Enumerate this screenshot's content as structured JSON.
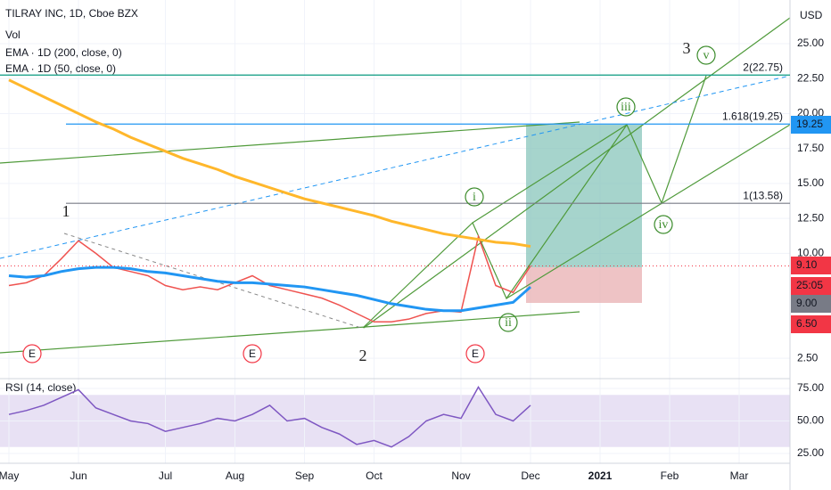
{
  "chart_data": [
    {
      "type": "line",
      "title": "TILRAY INC, 1D, Cboe BZX",
      "legend": [
        "Vol",
        "EMA · 1D (200, close, 0)",
        "EMA · 1D (50, close, 0)"
      ],
      "currency": "USD",
      "categories": [
        "May",
        null,
        null,
        null,
        "Jun",
        null,
        null,
        null,
        null,
        "Jul",
        null,
        null,
        null,
        "Aug",
        null,
        null,
        null,
        "Sep",
        null,
        null,
        null,
        "Oct",
        null,
        null,
        null,
        null,
        "Nov",
        null,
        null,
        null,
        "Dec",
        null,
        null,
        null,
        "2021",
        null,
        null,
        null,
        "Feb",
        null,
        null,
        null,
        "Mar",
        null,
        null
      ],
      "series": [
        {
          "color": "#ef5350",
          "values": [
            7.7,
            7.9,
            8.4,
            9.6,
            10.9,
            10.0,
            9.0,
            8.7,
            8.4,
            7.7,
            7.4,
            7.6,
            7.4,
            7.9,
            8.4,
            7.7,
            7.4,
            7.1,
            6.8,
            6.3,
            5.7,
            5.1,
            5.1,
            5.3,
            5.7,
            5.9,
            5.8,
            11.2,
            7.7,
            7.2,
            9.1,
            null,
            null,
            null,
            null,
            null,
            null,
            null,
            null,
            null,
            null,
            null,
            null,
            null,
            null
          ]
        },
        {
          "name": "EMA · 1D (200, close, 0)",
          "color": "#ffb72b",
          "values": [
            22.4,
            21.8,
            21.2,
            20.6,
            20.0,
            19.4,
            18.9,
            18.3,
            17.8,
            17.3,
            16.8,
            16.4,
            16.0,
            15.5,
            15.1,
            14.7,
            14.3,
            13.9,
            13.6,
            13.3,
            13.0,
            12.7,
            12.3,
            12.0,
            11.7,
            11.4,
            11.2,
            11.0,
            10.8,
            10.7,
            10.5,
            null,
            null,
            null,
            null,
            null,
            null,
            null,
            null,
            null,
            null,
            null,
            null,
            null,
            null
          ]
        },
        {
          "name": "EMA · 1D (50, close, 0)",
          "color": "#2196f3",
          "values": [
            8.4,
            8.3,
            8.4,
            8.7,
            8.9,
            9.0,
            9.0,
            8.9,
            8.7,
            8.6,
            8.4,
            8.2,
            8.0,
            7.9,
            7.9,
            7.8,
            7.7,
            7.6,
            7.4,
            7.2,
            7.0,
            6.7,
            6.4,
            6.2,
            6.0,
            5.9,
            5.9,
            6.1,
            6.3,
            6.5,
            7.6,
            null,
            null,
            null,
            null,
            null,
            null,
            null,
            null,
            null,
            null,
            null,
            null,
            null,
            null
          ]
        }
      ],
      "ylim": [
        1.36,
        28.12
      ],
      "yticks": [
        {
          "value": 2.5,
          "label": "2.50"
        },
        {
          "value": 10,
          "label": "10.00"
        },
        {
          "value": 12.5,
          "label": "12.50"
        },
        {
          "value": 15,
          "label": "15.00"
        },
        {
          "value": 17.5,
          "label": "17.50"
        },
        {
          "value": 20,
          "label": "20.00"
        },
        {
          "value": 22.5,
          "label": "22.50"
        },
        {
          "value": 25,
          "label": "25.00"
        }
      ],
      "levels": [
        {
          "label": "2(22.75)",
          "value": 22.75,
          "color": "#089981"
        },
        {
          "label": "1.618(19.25)",
          "value": 19.25,
          "color": "#2196f3"
        },
        {
          "label": "1(13.58)",
          "value": 13.58,
          "color": "#787b86"
        }
      ],
      "price_labels": [
        {
          "label": "19.25",
          "color": "#2196f3"
        },
        {
          "label": "9.10",
          "color": "#f23645"
        },
        {
          "label": "25:05",
          "color": "#f23645"
        },
        {
          "label": "9.00",
          "color": "#787b86"
        },
        {
          "label": "6.50",
          "color": "#f23645"
        }
      ],
      "waves": [
        "1",
        "2",
        "3",
        "i",
        "ii",
        "iii",
        "iv",
        "v"
      ],
      "events": [
        "E",
        "E",
        "E"
      ]
    },
    {
      "type": "line",
      "title": "RSI (14, close)",
      "color": "#7e57c2",
      "band": [
        30,
        70
      ],
      "values": [
        55,
        58,
        62,
        68,
        74,
        60,
        55,
        50,
        48,
        42,
        45,
        48,
        52,
        50,
        55,
        62,
        50,
        52,
        45,
        40,
        32,
        35,
        30,
        38,
        50,
        55,
        52,
        76,
        55,
        50,
        62,
        null,
        null,
        null,
        null,
        null,
        null,
        null,
        null,
        null,
        null,
        null,
        null,
        null,
        null
      ],
      "ylim": [
        17.5,
        82.5
      ],
      "yticks": [
        {
          "value": 25,
          "label": "25.00"
        },
        {
          "value": 50,
          "label": "50.00"
        },
        {
          "value": 75,
          "label": "75.00"
        }
      ]
    }
  ]
}
